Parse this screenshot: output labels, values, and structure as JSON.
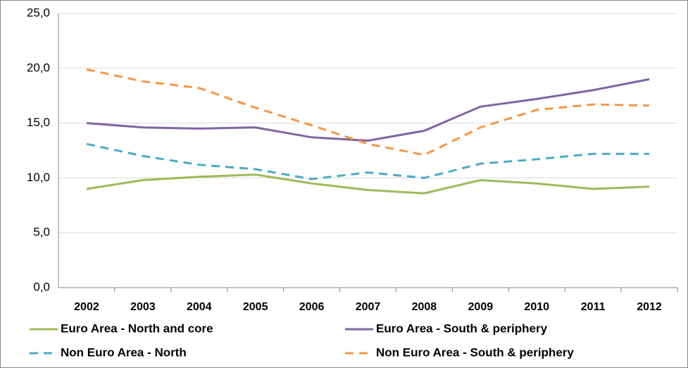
{
  "chart_data": {
    "type": "line",
    "categories": [
      "2002",
      "2003",
      "2004",
      "2005",
      "2006",
      "2007",
      "2008",
      "2009",
      "2010",
      "2011",
      "2012"
    ],
    "series": [
      {
        "name": "Euro Area - North and core",
        "color": "#9bbb59",
        "style": "solid",
        "values": [
          9.0,
          9.8,
          10.1,
          10.3,
          9.5,
          8.9,
          8.6,
          9.8,
          9.5,
          9.0,
          9.2
        ]
      },
      {
        "name": "Euro Area - South & periphery",
        "color": "#8064a2",
        "style": "solid",
        "values": [
          15.0,
          14.6,
          14.5,
          14.6,
          13.7,
          13.4,
          14.3,
          16.5,
          17.2,
          18.0,
          19.0
        ]
      },
      {
        "name": "Non Euro Area - North",
        "color": "#4bacc6",
        "style": "dashed",
        "values": [
          13.1,
          12.0,
          11.2,
          10.8,
          9.9,
          10.5,
          10.0,
          11.3,
          11.7,
          12.2,
          12.2
        ]
      },
      {
        "name": "Non Euro Area - South & periphery",
        "color": "#f79646",
        "style": "dashed",
        "values": [
          19.9,
          18.8,
          18.2,
          16.4,
          14.8,
          13.1,
          12.1,
          14.6,
          16.2,
          16.7,
          16.6
        ]
      }
    ],
    "ylim": [
      0,
      25
    ],
    "yticks": [
      {
        "value": 0,
        "label": "0,0"
      },
      {
        "value": 5,
        "label": "5,0"
      },
      {
        "value": 10,
        "label": "10,0"
      },
      {
        "value": 15,
        "label": "15,0"
      },
      {
        "value": 20,
        "label": "20,0"
      },
      {
        "value": 25,
        "label": "25,0"
      }
    ],
    "grid": true,
    "legend": "bottom"
  }
}
